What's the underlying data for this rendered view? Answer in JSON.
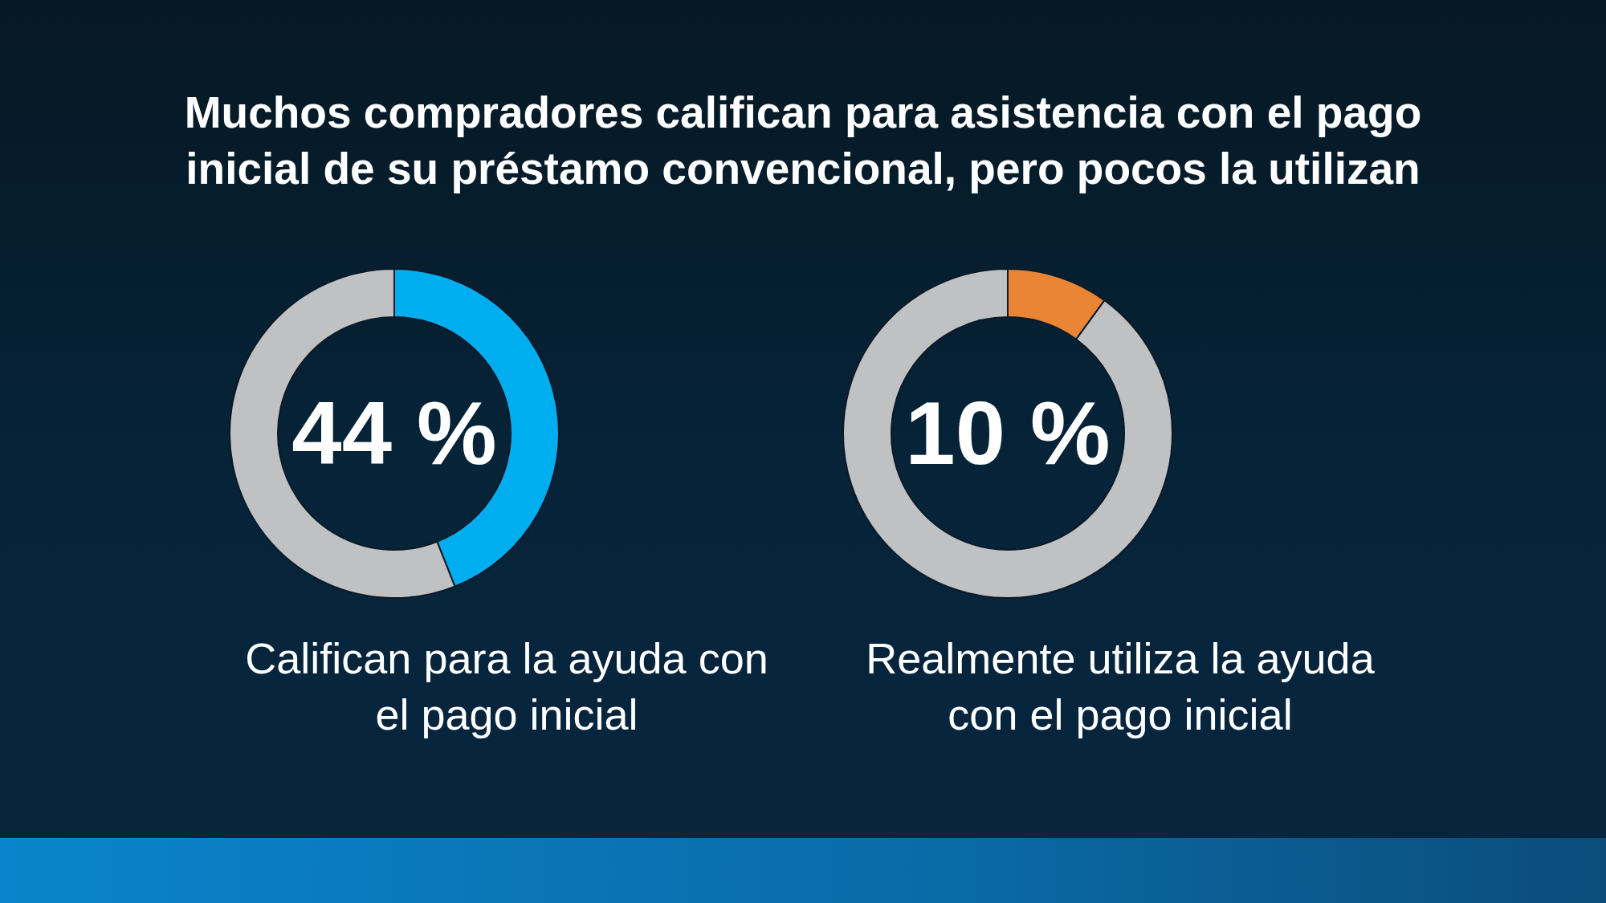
{
  "chart_data": [
    {
      "type": "donut",
      "title": "Muchos compradores califican para asistencia con el pago inicial de su préstamo convencional, pero pocos la utilizan",
      "categories": [
        null,
        null
      ],
      "values": [
        44,
        56
      ],
      "colors": [
        "#00adef",
        "#bfc1c2"
      ],
      "value_labels": [
        "44 %",
        null
      ],
      "xlabel": "Califican para la ayuda con el pago inicial"
    },
    {
      "type": "donut",
      "categories": [
        null,
        null
      ],
      "values": [
        10,
        90
      ],
      "colors": [
        "#ea8535",
        "#bfc1c2"
      ],
      "value_labels": [
        "10 %",
        null
      ],
      "xlabel": "Realmente utiliza la ayuda con el pago inicial"
    }
  ]
}
